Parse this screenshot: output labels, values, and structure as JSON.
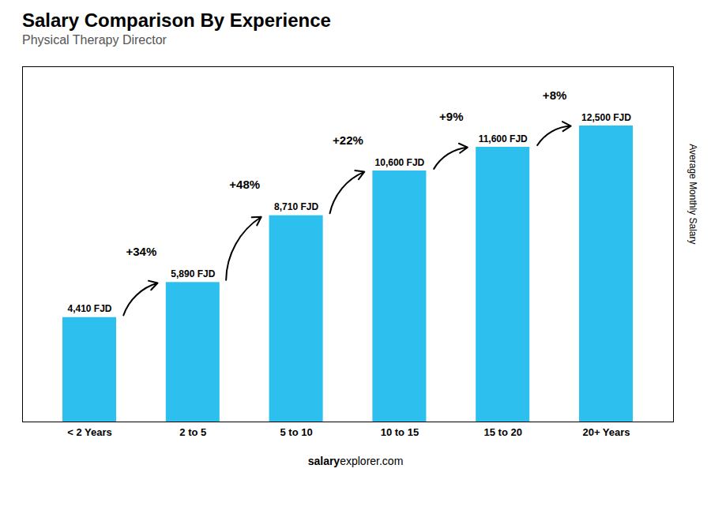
{
  "chart_data": {
    "type": "bar",
    "title": "Salary Comparison By Experience",
    "subtitle": "Physical Therapy Director",
    "categories": [
      "< 2 Years",
      "2 to 5",
      "5 to 10",
      "10 to 15",
      "15 to 20",
      "20+ Years"
    ],
    "values": [
      4410,
      5890,
      8710,
      10600,
      11600,
      12500
    ],
    "value_labels": [
      "4,410 FJD",
      "5,890 FJD",
      "8,710 FJD",
      "10,600 FJD",
      "11,600 FJD",
      "12,500 FJD"
    ],
    "data_labels": true,
    "color": "#2dc0ee",
    "ylabel": "Average Monthly Salary",
    "ylim": [
      0,
      15000
    ],
    "tick_labels": "x",
    "grid": false,
    "annotations": [
      "+34%",
      "+48%",
      "+22%",
      "+9%",
      "+8%"
    ],
    "watermark": [
      "salary",
      "explorer.com"
    ]
  }
}
